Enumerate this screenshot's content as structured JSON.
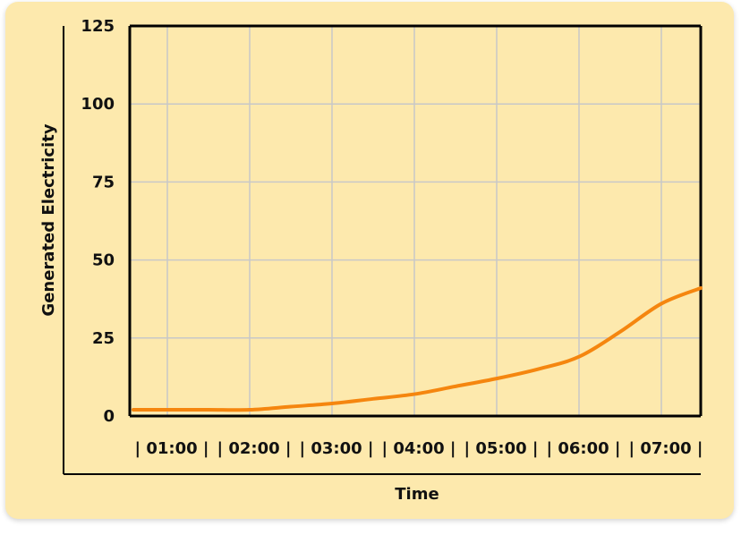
{
  "chart_data": {
    "type": "line",
    "title": "",
    "xlabel": "Time",
    "ylabel": "Generated Electricity",
    "x_ticks": [
      "| 01:00 |",
      "| 02:00 |",
      "| 03:00 |",
      "| 04:00 |",
      "| 05:00 |",
      "| 06:00 |",
      "| 07:00 |"
    ],
    "y_ticks": [
      0,
      25,
      50,
      75,
      100,
      125
    ],
    "ylim": [
      0,
      125
    ],
    "grid": true,
    "legend": "none",
    "series": [
      {
        "color": "#f5860f",
        "x": [
          "00:30",
          "01:00",
          "01:30",
          "02:00",
          "02:30",
          "03:00",
          "03:30",
          "04:00",
          "04:30",
          "05:00",
          "05:30",
          "06:00",
          "06:30",
          "07:00",
          "07:30"
        ],
        "values": [
          2,
          2,
          2,
          2,
          3,
          4,
          5.5,
          7,
          9.5,
          12,
          15,
          19,
          27,
          36,
          41
        ]
      }
    ]
  }
}
